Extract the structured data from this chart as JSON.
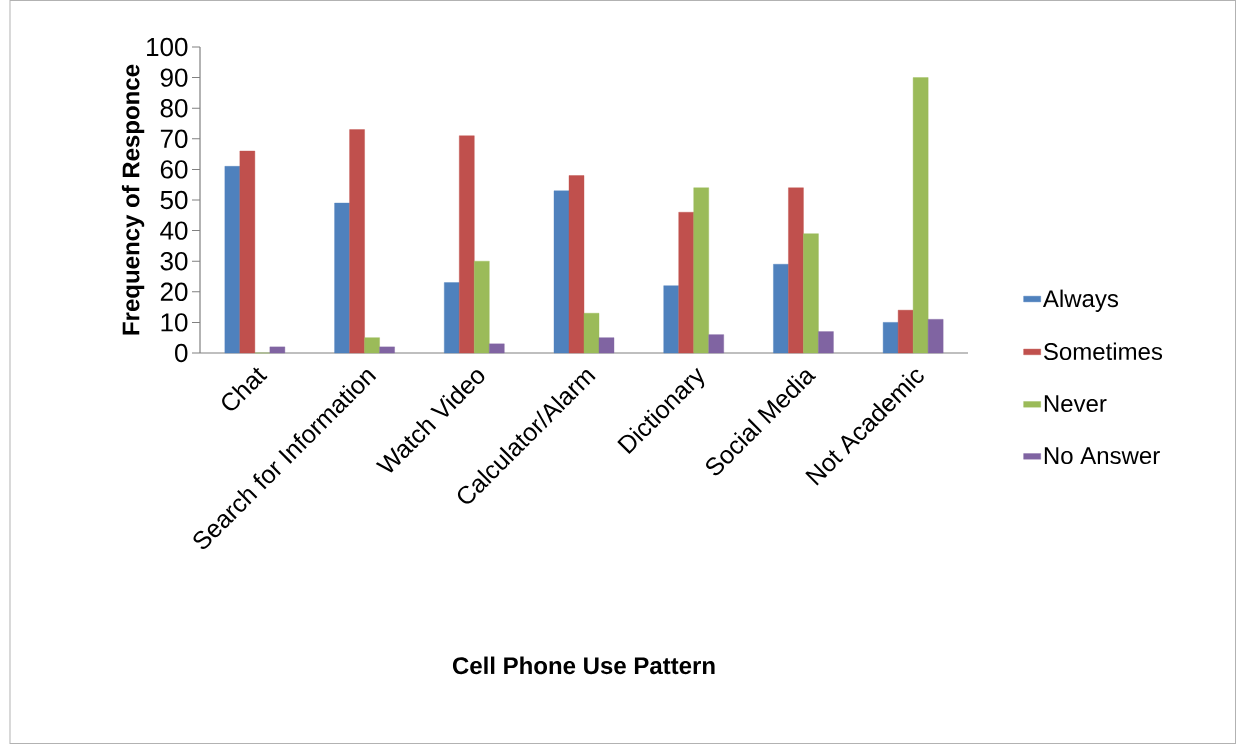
{
  "chart_data": {
    "type": "bar",
    "xlabel": "Cell Phone Use Pattern",
    "ylabel": "Frequency of Responce",
    "categories": [
      "Chat",
      "Search for Information",
      "Watch Video",
      "Calculator/Alarm",
      "Dictionary",
      "Social Media",
      "Not Academic"
    ],
    "series": [
      {
        "name": "Always",
        "color": "#4f81bd",
        "values": [
          61,
          49,
          23,
          53,
          22,
          29,
          10
        ]
      },
      {
        "name": "Sometimes",
        "color": "#c0504d",
        "values": [
          66,
          73,
          71,
          58,
          46,
          54,
          14
        ]
      },
      {
        "name": "Never",
        "color": "#9bbb59",
        "values": [
          0,
          5,
          30,
          13,
          54,
          39,
          90
        ]
      },
      {
        "name": "No Answer",
        "color": "#8064a2",
        "values": [
          2,
          2,
          3,
          5,
          6,
          7,
          11
        ]
      }
    ],
    "ylim": [
      0,
      100
    ],
    "yticks": [
      0,
      10,
      20,
      30,
      40,
      50,
      60,
      70,
      80,
      90,
      100
    ],
    "grid": false,
    "legend": "right"
  }
}
